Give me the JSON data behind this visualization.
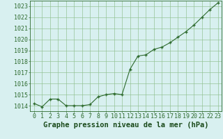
{
  "x": [
    0,
    1,
    2,
    3,
    4,
    5,
    6,
    7,
    8,
    9,
    10,
    11,
    12,
    13,
    14,
    15,
    16,
    17,
    18,
    19,
    20,
    21,
    22,
    23
  ],
  "y": [
    1014.2,
    1013.9,
    1014.6,
    1014.6,
    1014.0,
    1014.0,
    1014.0,
    1014.1,
    1014.8,
    1015.0,
    1015.1,
    1015.0,
    1017.3,
    1018.5,
    1018.6,
    1019.1,
    1019.3,
    1019.7,
    1020.2,
    1020.7,
    1021.3,
    1022.0,
    1022.7,
    1023.3
  ],
  "ylim": [
    1013.5,
    1023.5
  ],
  "yticks": [
    1014,
    1015,
    1016,
    1017,
    1018,
    1019,
    1020,
    1021,
    1022,
    1023
  ],
  "xticks": [
    0,
    1,
    2,
    3,
    4,
    5,
    6,
    7,
    8,
    9,
    10,
    11,
    12,
    13,
    14,
    15,
    16,
    17,
    18,
    19,
    20,
    21,
    22,
    23
  ],
  "line_color": "#2d6a2d",
  "marker_color": "#2d6a2d",
  "bg_color": "#d8f0f0",
  "grid_color": "#8fbf8f",
  "xlabel": "Graphe pression niveau de la mer (hPa)",
  "xlabel_color": "#1a4a1a",
  "tick_color": "#2d6a2d",
  "spine_color": "#2d6a2d",
  "xlabel_fontsize": 7.5,
  "tick_fontsize": 6.0
}
